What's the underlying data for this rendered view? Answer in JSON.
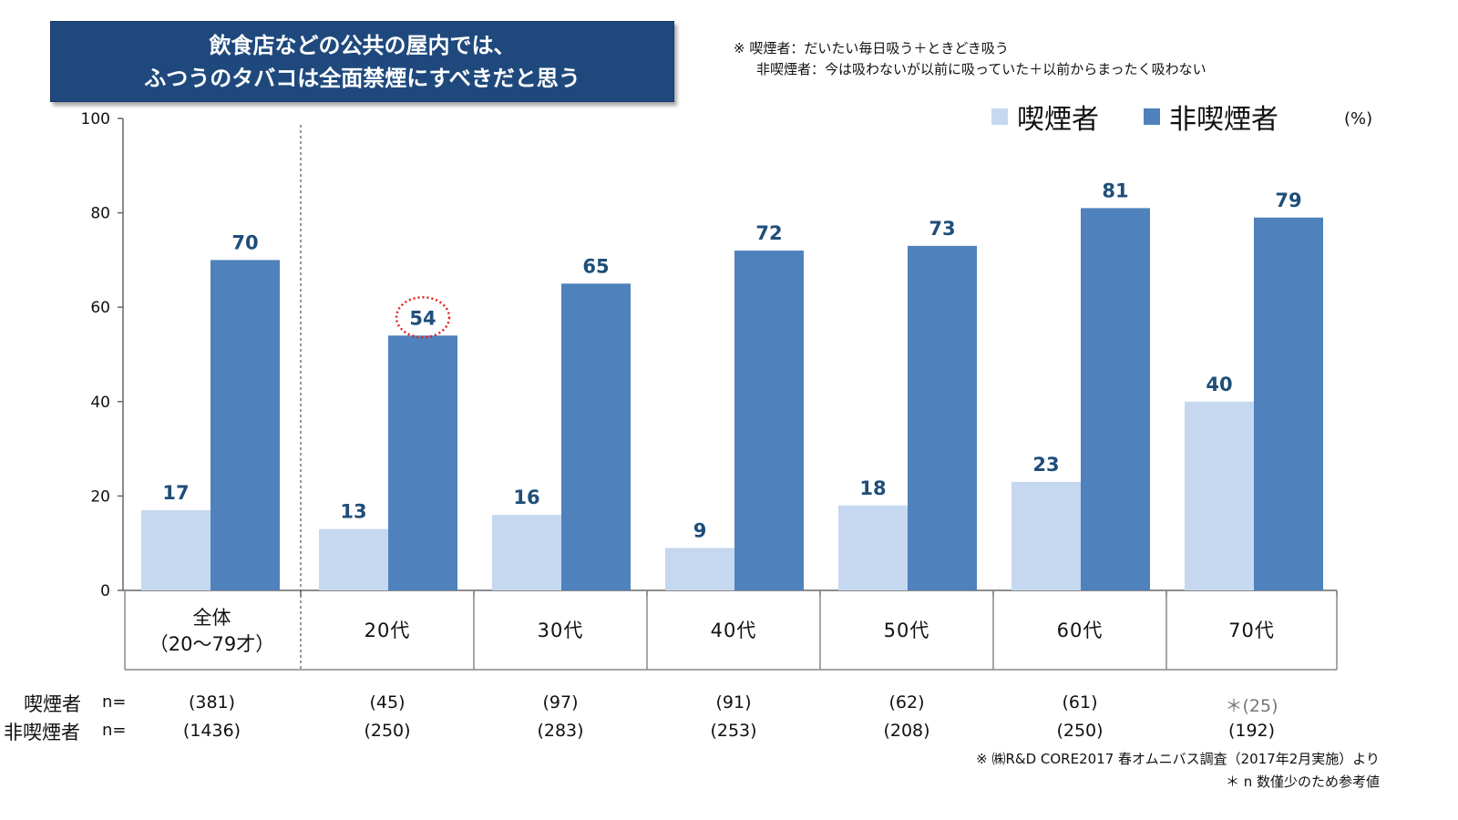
{
  "title": {
    "line1": "飲食店などの公共の屋内では、",
    "line2": "ふつうのタバコは全面禁煙にすべきだと思う"
  },
  "notes": {
    "line1": "※ 喫煙者：だいたい毎日吸う＋ときどき吸う",
    "line2": "非喫煙者：今は吸わないが以前に吸っていた＋以前からまったく吸わない"
  },
  "unit": "(%)",
  "colors": {
    "smoker": "#c6d8f0",
    "nonsmoker": "#4f81bd",
    "value_label": "#1f4e79",
    "title_bg": "#1f497d",
    "highlight": "#e02020"
  },
  "chart_data": {
    "type": "bar",
    "categories": [
      [
        "全体",
        "（20～79才）"
      ],
      [
        "20代"
      ],
      [
        "30代"
      ],
      [
        "40代"
      ],
      [
        "50代"
      ],
      [
        "60代"
      ],
      [
        "70代"
      ]
    ],
    "series": [
      {
        "name": "喫煙者",
        "values": [
          17,
          13,
          16,
          9,
          18,
          23,
          40
        ]
      },
      {
        "name": "非喫煙者",
        "values": [
          70,
          54,
          65,
          72,
          73,
          81,
          79
        ]
      }
    ],
    "value_labels": [
      [
        "17",
        "13",
        "16",
        "9",
        "18",
        "23",
        "40"
      ],
      [
        "70",
        "54",
        "65",
        "72",
        "73",
        "81",
        "79"
      ]
    ],
    "yticks": [
      "0",
      "20",
      "40",
      "60",
      "80",
      "100"
    ],
    "ylim": [
      0,
      100
    ],
    "legend_position": "top-right",
    "highlighted": {
      "series": 1,
      "category": 1
    },
    "n_rows": [
      {
        "label": "喫煙者",
        "prefix": "n=",
        "values": [
          "(381)",
          "(45)",
          "(97)",
          "(91)",
          "(62)",
          "(61)",
          "＊(25)"
        ]
      },
      {
        "label": "非喫煙者",
        "prefix": "n=",
        "values": [
          "(1436)",
          "(250)",
          "(283)",
          "(253)",
          "(208)",
          "(250)",
          "(192)"
        ]
      }
    ]
  },
  "footnotes": {
    "source": "※ ㈱R&D CORE2017 春オムニバス調査（2017年2月実施）より",
    "caution": "＊ n 数僅少のため参考値"
  }
}
